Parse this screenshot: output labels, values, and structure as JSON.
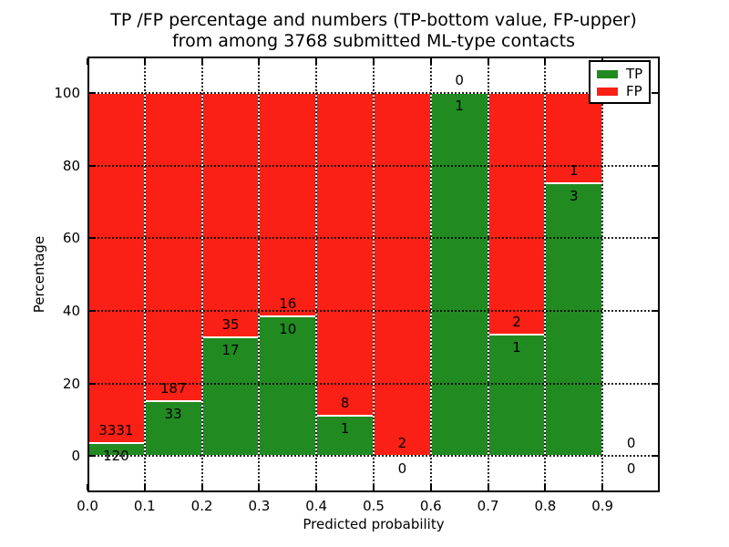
{
  "figure": {
    "title_line1": "TP /FP percentage and numbers (TP-bottom value, FP-upper)",
    "title_line2": "from among 3768 submitted ML-type contacts"
  },
  "colors": {
    "tp_green": "#218a21",
    "fp_red": "#fb2015",
    "background": "#ffffff",
    "text": "#000000",
    "grid": "#000000"
  },
  "chart_data": {
    "type": "bar",
    "stacked": true,
    "title": "TP /FP percentage and numbers (TP-bottom value, FP-upper) from among 3768 submitted ML-type contacts",
    "xlabel": "Predicted probability",
    "ylabel": "Percentage",
    "xlim": [
      0.0,
      1.0
    ],
    "ylim": [
      -10,
      110
    ],
    "xticks": [
      "0.0",
      "0.1",
      "0.2",
      "0.3",
      "0.4",
      "0.5",
      "0.6",
      "0.7",
      "0.8",
      "0.9"
    ],
    "yticks": [
      0,
      20,
      40,
      60,
      80,
      100
    ],
    "grid": "dotted, both axes",
    "total_contacts": 3768,
    "bar_label_note": "TP count below segment boundary, FP count above segment boundary",
    "legend": {
      "position": "upper right",
      "items": [
        {
          "label": "TP",
          "color": "#218a21"
        },
        {
          "label": "FP",
          "color": "#fb2015"
        }
      ]
    },
    "bins": [
      {
        "range": [
          0.0,
          0.1
        ],
        "tp": 120,
        "fp": 3331,
        "tp_pct": 3.5,
        "fp_pct": 96.5
      },
      {
        "range": [
          0.1,
          0.2
        ],
        "tp": 33,
        "fp": 187,
        "tp_pct": 15.0,
        "fp_pct": 85.0
      },
      {
        "range": [
          0.2,
          0.3
        ],
        "tp": 17,
        "fp": 35,
        "tp_pct": 32.7,
        "fp_pct": 67.3
      },
      {
        "range": [
          0.3,
          0.4
        ],
        "tp": 10,
        "fp": 16,
        "tp_pct": 38.5,
        "fp_pct": 61.5
      },
      {
        "range": [
          0.4,
          0.5
        ],
        "tp": 1,
        "fp": 8,
        "tp_pct": 11.1,
        "fp_pct": 88.9
      },
      {
        "range": [
          0.5,
          0.6
        ],
        "tp": 0,
        "fp": 2,
        "tp_pct": 0.0,
        "fp_pct": 100.0
      },
      {
        "range": [
          0.6,
          0.7
        ],
        "tp": 1,
        "fp": 0,
        "tp_pct": 100.0,
        "fp_pct": 0.0
      },
      {
        "range": [
          0.7,
          0.8
        ],
        "tp": 1,
        "fp": 2,
        "tp_pct": 33.3,
        "fp_pct": 66.7
      },
      {
        "range": [
          0.8,
          0.9
        ],
        "tp": 3,
        "fp": 1,
        "tp_pct": 75.0,
        "fp_pct": 25.0
      },
      {
        "range": [
          0.9,
          1.0
        ],
        "tp": 0,
        "fp": 0,
        "tp_pct": null,
        "fp_pct": null
      }
    ]
  }
}
